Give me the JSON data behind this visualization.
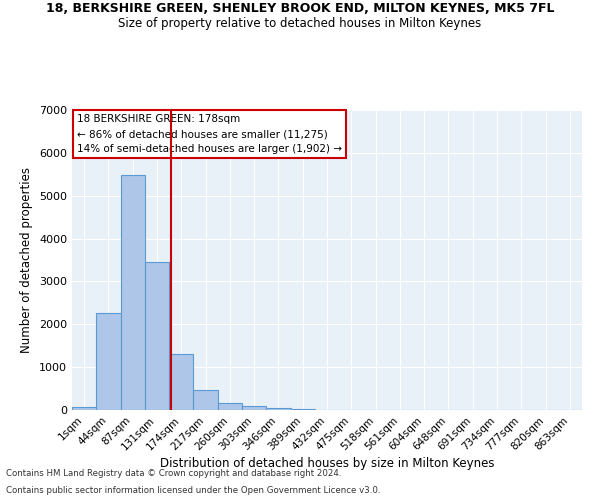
{
  "title": "18, BERKSHIRE GREEN, SHENLEY BROOK END, MILTON KEYNES, MK5 7FL",
  "subtitle": "Size of property relative to detached houses in Milton Keynes",
  "xlabel": "Distribution of detached houses by size in Milton Keynes",
  "ylabel": "Number of detached properties",
  "bar_labels": [
    "1sqm",
    "44sqm",
    "87sqm",
    "131sqm",
    "174sqm",
    "217sqm",
    "260sqm",
    "303sqm",
    "346sqm",
    "389sqm",
    "432sqm",
    "475sqm",
    "518sqm",
    "561sqm",
    "604sqm",
    "648sqm",
    "691sqm",
    "734sqm",
    "777sqm",
    "820sqm",
    "863sqm"
  ],
  "bar_values": [
    80,
    2270,
    5480,
    3450,
    1310,
    470,
    160,
    90,
    55,
    30,
    0,
    0,
    0,
    0,
    0,
    0,
    0,
    0,
    0,
    0,
    0
  ],
  "bar_color": "#aec6e8",
  "bar_edgecolor": "#5b9bd5",
  "vline_color": "#cc0000",
  "annotation_text": "18 BERKSHIRE GREEN: 178sqm\n← 86% of detached houses are smaller (11,275)\n14% of semi-detached houses are larger (1,902) →",
  "annotation_box_color": "#ffffff",
  "annotation_box_edgecolor": "#cc0000",
  "ylim": [
    0,
    7000
  ],
  "yticks": [
    0,
    1000,
    2000,
    3000,
    4000,
    5000,
    6000,
    7000
  ],
  "background_color": "#e8f0f8",
  "footer_line1": "Contains HM Land Registry data © Crown copyright and database right 2024.",
  "footer_line2": "Contains public sector information licensed under the Open Government Licence v3.0."
}
